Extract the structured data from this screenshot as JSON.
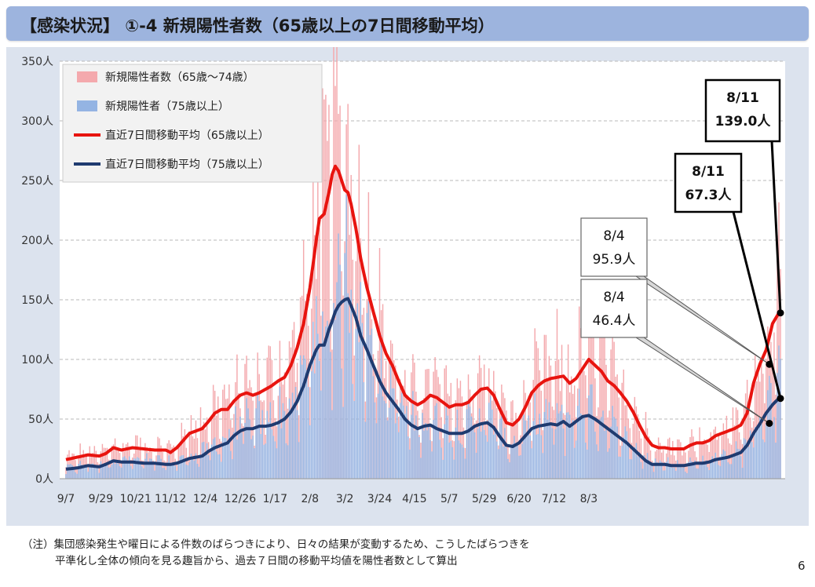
{
  "title": "【感染状況】 ①-4  新規陽性者数（65歳以上の7日間移動平均）",
  "note": {
    "line1": "（注）集団感染発生や曜日による件数のばらつきにより、日々の結果が変動するため、こうしたばらつきを",
    "line2": "平準化し全体の傾向を見る趣旨から、過去７日間の移動平均値を陽性者数として算出"
  },
  "page_number": "6",
  "colors": {
    "bar_65_74": "#f4a9ad",
    "bar_75_plus": "#94b4e3",
    "line_65_plus": "#e8140f",
    "line_75_plus": "#1f3b70",
    "panel": "#dce3ee",
    "title_bar": "#9db4de"
  },
  "chart_data": {
    "type": "bar+line",
    "y_unit": "人",
    "ylim": [
      0,
      350
    ],
    "y_ticks": [
      "0人",
      "50人",
      "100人",
      "150人",
      "200人",
      "250人",
      "300人",
      "350人"
    ],
    "x_tick_labels": [
      "9/7",
      "9/29",
      "10/21",
      "11/12",
      "12/4",
      "12/26",
      "1/17",
      "2/8",
      "3/2",
      "3/24",
      "4/15",
      "5/7",
      "5/29",
      "6/20",
      "7/12",
      "8/3"
    ],
    "x_tick_step_days": 22,
    "num_days": 340,
    "grid": "horizontal dashed",
    "legend_position": "top-left",
    "legend": [
      {
        "label": "新規陽性者数（65歳～74歳）",
        "kind": "bar",
        "color": "#f4a9ad"
      },
      {
        "label": "新規陽性者（75歳以上）",
        "kind": "bar",
        "color": "#94b4e3"
      },
      {
        "label": "直近7日間移動平均（65歳以上）",
        "kind": "line",
        "color": "#e8140f"
      },
      {
        "label": "直近7日間移動平均（75歳以上）",
        "kind": "line",
        "color": "#1f3b70"
      }
    ],
    "series": [
      {
        "name": "直近7日間移動平均（65歳以上）",
        "kind": "line",
        "keypoints_day_value": [
          [
            0,
            16
          ],
          [
            7,
            18
          ],
          [
            14,
            20
          ],
          [
            21,
            19
          ],
          [
            25,
            21
          ],
          [
            30,
            26
          ],
          [
            35,
            24
          ],
          [
            42,
            26
          ],
          [
            49,
            25
          ],
          [
            56,
            24
          ],
          [
            63,
            24
          ],
          [
            66,
            22
          ],
          [
            70,
            26
          ],
          [
            74,
            32
          ],
          [
            78,
            38
          ],
          [
            82,
            40
          ],
          [
            86,
            42
          ],
          [
            90,
            48
          ],
          [
            94,
            55
          ],
          [
            98,
            58
          ],
          [
            102,
            58
          ],
          [
            106,
            65
          ],
          [
            110,
            70
          ],
          [
            114,
            72
          ],
          [
            118,
            70
          ],
          [
            122,
            72
          ],
          [
            126,
            75
          ],
          [
            130,
            78
          ],
          [
            134,
            82
          ],
          [
            138,
            85
          ],
          [
            142,
            95
          ],
          [
            146,
            110
          ],
          [
            150,
            130
          ],
          [
            154,
            160
          ],
          [
            158,
            200
          ],
          [
            160,
            218
          ],
          [
            163,
            222
          ],
          [
            166,
            240
          ],
          [
            168,
            255
          ],
          [
            170,
            262
          ],
          [
            172,
            258
          ],
          [
            174,
            250
          ],
          [
            176,
            242
          ],
          [
            178,
            240
          ],
          [
            180,
            230
          ],
          [
            183,
            210
          ],
          [
            186,
            185
          ],
          [
            190,
            160
          ],
          [
            194,
            140
          ],
          [
            198,
            120
          ],
          [
            202,
            105
          ],
          [
            206,
            95
          ],
          [
            210,
            82
          ],
          [
            214,
            70
          ],
          [
            218,
            65
          ],
          [
            222,
            62
          ],
          [
            226,
            65
          ],
          [
            230,
            70
          ],
          [
            234,
            68
          ],
          [
            238,
            64
          ],
          [
            242,
            60
          ],
          [
            246,
            62
          ],
          [
            250,
            62
          ],
          [
            254,
            64
          ],
          [
            258,
            70
          ],
          [
            262,
            75
          ],
          [
            266,
            76
          ],
          [
            270,
            70
          ],
          [
            274,
            58
          ],
          [
            278,
            47
          ],
          [
            282,
            45
          ],
          [
            286,
            50
          ],
          [
            290,
            60
          ],
          [
            294,
            72
          ],
          [
            298,
            78
          ],
          [
            302,
            82
          ],
          [
            306,
            84
          ],
          [
            310,
            85
          ],
          [
            314,
            86
          ],
          [
            318,
            80
          ],
          [
            322,
            84
          ],
          [
            326,
            92
          ],
          [
            330,
            100
          ],
          [
            334,
            95
          ],
          [
            338,
            90
          ],
          [
            342,
            82
          ],
          [
            346,
            78
          ],
          [
            350,
            72
          ],
          [
            354,
            65
          ],
          [
            358,
            56
          ],
          [
            362,
            45
          ],
          [
            366,
            35
          ],
          [
            370,
            28
          ],
          [
            374,
            26
          ],
          [
            378,
            26
          ],
          [
            382,
            25
          ],
          [
            386,
            25
          ],
          [
            390,
            25
          ],
          [
            394,
            28
          ],
          [
            398,
            30
          ],
          [
            402,
            30
          ],
          [
            406,
            32
          ],
          [
            410,
            36
          ],
          [
            414,
            38
          ],
          [
            418,
            40
          ],
          [
            422,
            42
          ],
          [
            426,
            45
          ],
          [
            430,
            55
          ],
          [
            434,
            80
          ],
          [
            438,
            96
          ],
          [
            442,
            108
          ],
          [
            446,
            130
          ],
          [
            450,
            139
          ]
        ]
      },
      {
        "name": "直近7日間移動平均（75歳以上）",
        "kind": "line",
        "keypoints_day_value": [
          [
            0,
            8
          ],
          [
            7,
            9
          ],
          [
            14,
            11
          ],
          [
            21,
            10
          ],
          [
            25,
            12
          ],
          [
            30,
            15
          ],
          [
            35,
            14
          ],
          [
            42,
            14
          ],
          [
            49,
            13
          ],
          [
            56,
            13
          ],
          [
            63,
            12
          ],
          [
            66,
            12
          ],
          [
            70,
            13
          ],
          [
            74,
            15
          ],
          [
            78,
            17
          ],
          [
            82,
            18
          ],
          [
            86,
            19
          ],
          [
            90,
            23
          ],
          [
            94,
            26
          ],
          [
            98,
            28
          ],
          [
            102,
            30
          ],
          [
            106,
            36
          ],
          [
            110,
            40
          ],
          [
            114,
            42
          ],
          [
            118,
            42
          ],
          [
            122,
            44
          ],
          [
            126,
            44
          ],
          [
            130,
            45
          ],
          [
            134,
            47
          ],
          [
            138,
            50
          ],
          [
            142,
            56
          ],
          [
            146,
            65
          ],
          [
            150,
            78
          ],
          [
            154,
            95
          ],
          [
            158,
            108
          ],
          [
            160,
            112
          ],
          [
            163,
            112
          ],
          [
            166,
            125
          ],
          [
            168,
            132
          ],
          [
            170,
            140
          ],
          [
            172,
            145
          ],
          [
            174,
            148
          ],
          [
            176,
            150
          ],
          [
            178,
            151
          ],
          [
            180,
            145
          ],
          [
            183,
            135
          ],
          [
            186,
            120
          ],
          [
            190,
            108
          ],
          [
            194,
            95
          ],
          [
            198,
            82
          ],
          [
            202,
            72
          ],
          [
            206,
            65
          ],
          [
            210,
            58
          ],
          [
            214,
            50
          ],
          [
            218,
            45
          ],
          [
            222,
            42
          ],
          [
            226,
            44
          ],
          [
            230,
            45
          ],
          [
            234,
            42
          ],
          [
            238,
            40
          ],
          [
            242,
            38
          ],
          [
            246,
            38
          ],
          [
            250,
            38
          ],
          [
            254,
            40
          ],
          [
            258,
            44
          ],
          [
            262,
            46
          ],
          [
            266,
            47
          ],
          [
            270,
            43
          ],
          [
            274,
            35
          ],
          [
            278,
            28
          ],
          [
            282,
            27
          ],
          [
            286,
            30
          ],
          [
            290,
            36
          ],
          [
            294,
            42
          ],
          [
            298,
            44
          ],
          [
            302,
            45
          ],
          [
            306,
            46
          ],
          [
            310,
            45
          ],
          [
            314,
            48
          ],
          [
            318,
            44
          ],
          [
            322,
            48
          ],
          [
            326,
            52
          ],
          [
            330,
            53
          ],
          [
            334,
            50
          ],
          [
            338,
            46
          ],
          [
            342,
            42
          ],
          [
            346,
            38
          ],
          [
            350,
            34
          ],
          [
            354,
            30
          ],
          [
            358,
            25
          ],
          [
            362,
            20
          ],
          [
            366,
            15
          ],
          [
            370,
            12
          ],
          [
            374,
            12
          ],
          [
            378,
            12
          ],
          [
            382,
            11
          ],
          [
            386,
            11
          ],
          [
            390,
            11
          ],
          [
            394,
            12
          ],
          [
            398,
            13
          ],
          [
            402,
            13
          ],
          [
            406,
            14
          ],
          [
            410,
            16
          ],
          [
            414,
            17
          ],
          [
            418,
            18
          ],
          [
            422,
            20
          ],
          [
            426,
            22
          ],
          [
            430,
            28
          ],
          [
            434,
            38
          ],
          [
            438,
            46
          ],
          [
            442,
            55
          ],
          [
            446,
            62
          ],
          [
            450,
            67.3
          ]
        ]
      },
      {
        "name": "新規陽性者数（65歳～74歳）",
        "kind": "bar",
        "description_values": "daily stacked bars drawn around the moving averages"
      },
      {
        "name": "新規陽性者（75歳以上）",
        "kind": "bar",
        "description_values": "daily bars drawn around the 75+ moving average"
      }
    ],
    "annotations": [
      {
        "date": "8/4",
        "value_text": "95.9人",
        "value": 95.9,
        "series": "直近7日間移動平均（65歳以上）"
      },
      {
        "date": "8/4",
        "value_text": "46.4人",
        "value": 46.4,
        "series": "直近7日間移動平均（75歳以上）"
      },
      {
        "date": "8/11",
        "value_text": "67.3人",
        "value": 67.3,
        "series": "直近7日間移動平均（75歳以上）"
      },
      {
        "date": "8/11",
        "value_text": "139.0人",
        "value": 139.0,
        "series": "直近7日間移動平均（65歳以上）"
      }
    ]
  }
}
